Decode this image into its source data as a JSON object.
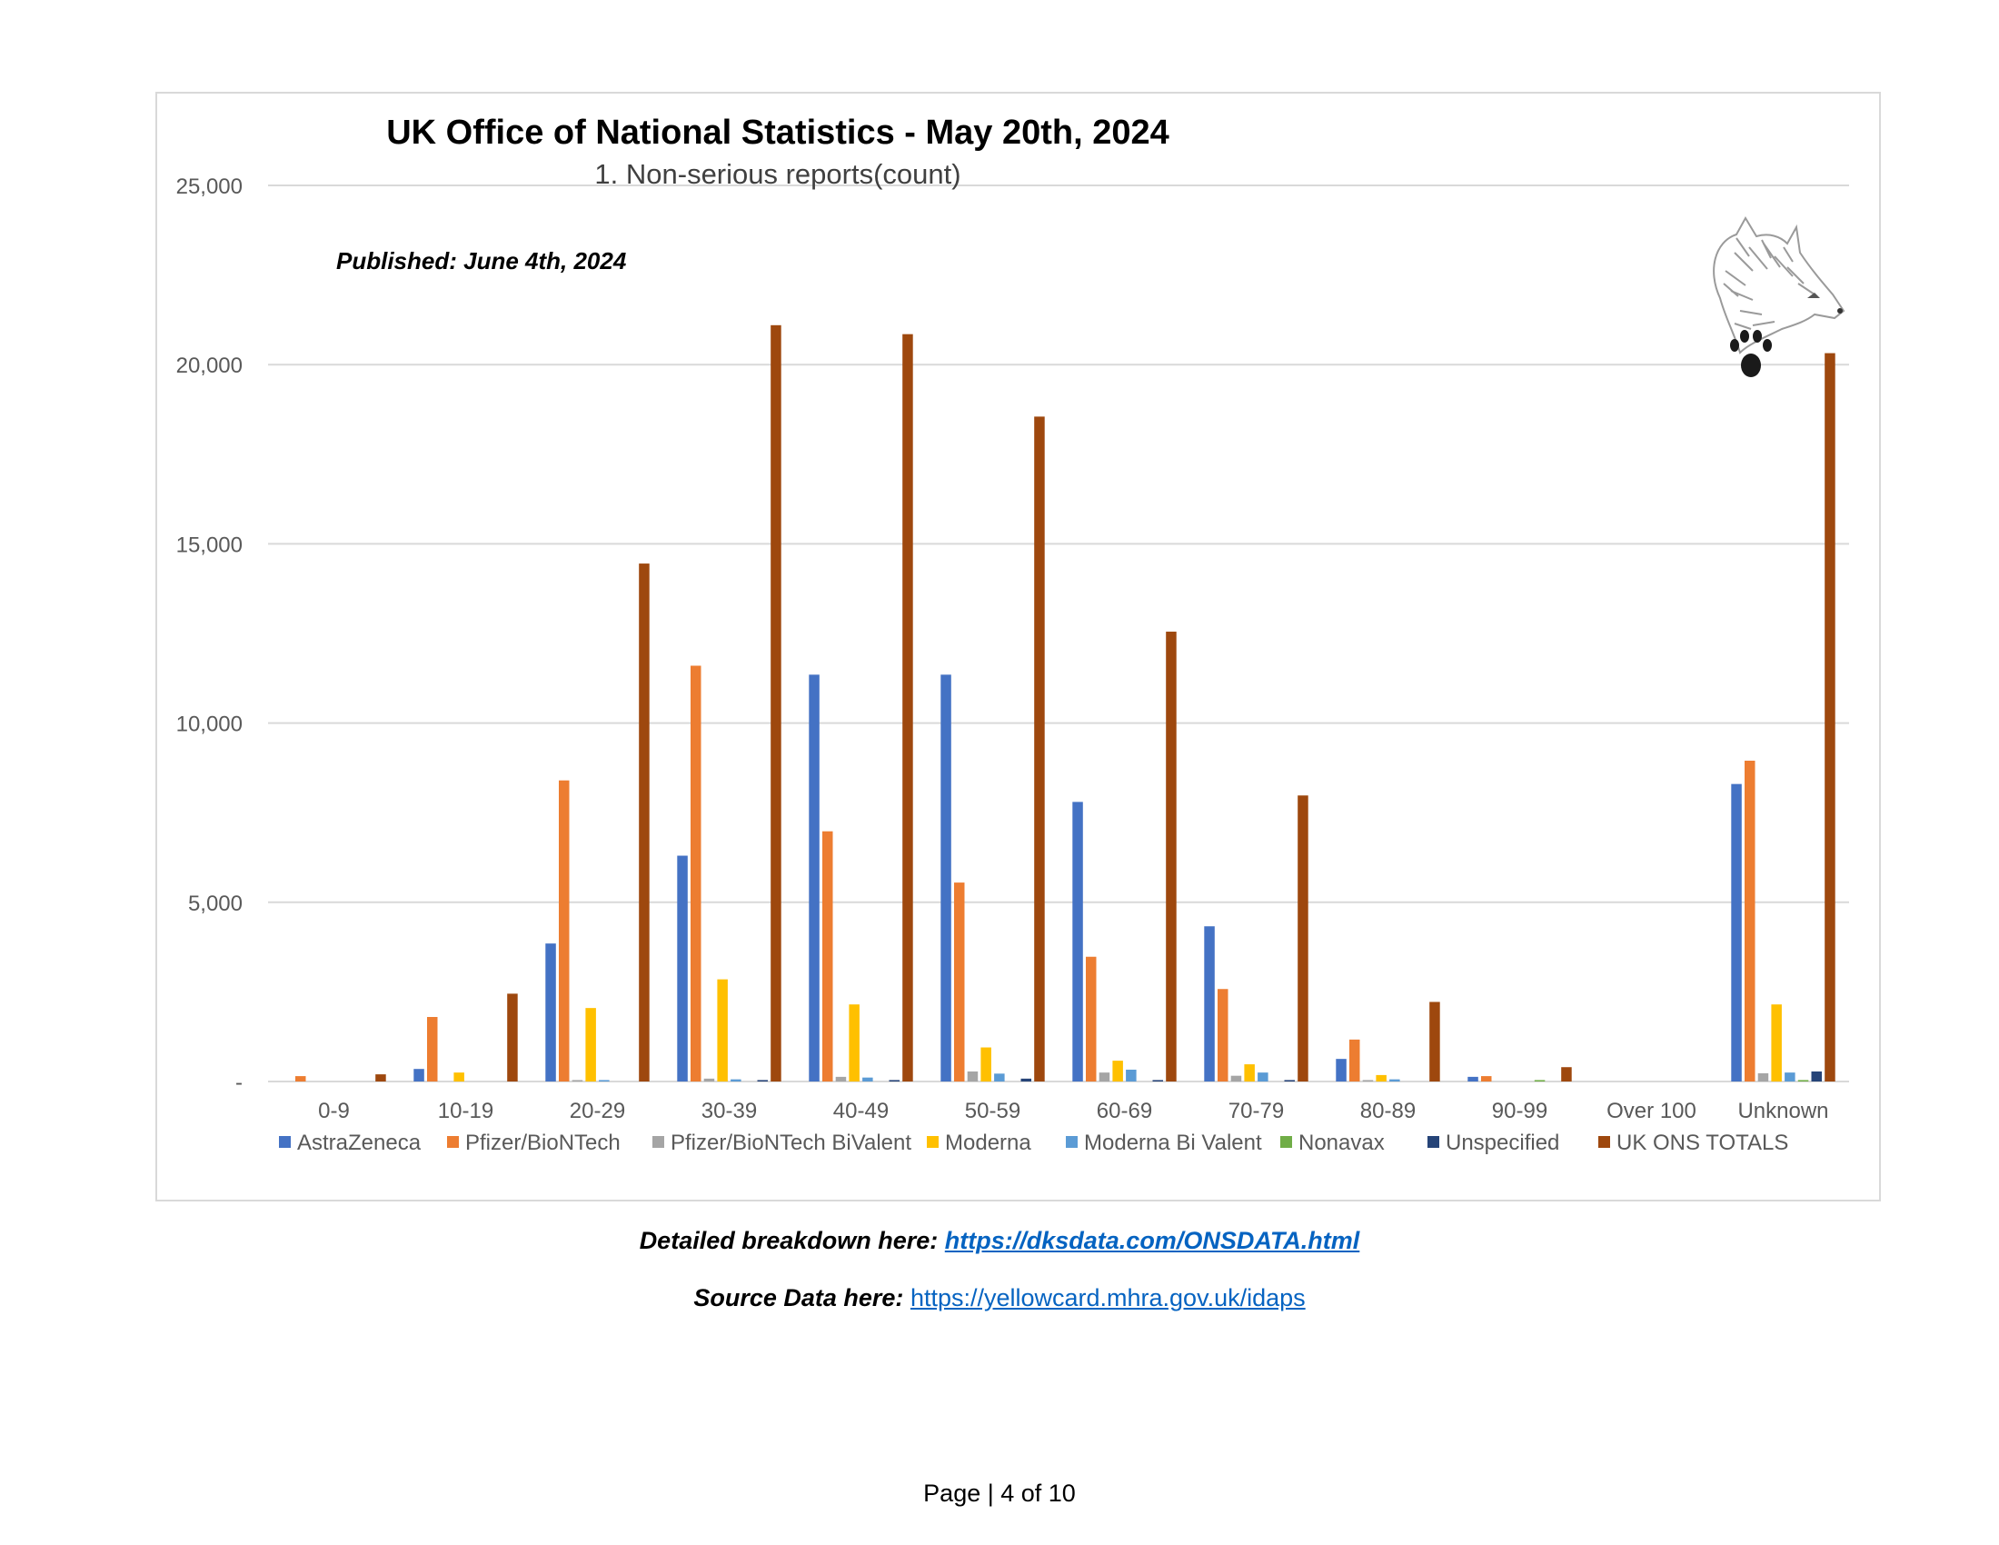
{
  "page": {
    "footer": {
      "breakdown_label": "Detailed breakdown here: ",
      "breakdown_link": "https://dksdata.com/ONSDATA.html",
      "source_label": "Source Data here: ",
      "source_link": "https://yellowcard.mhra.gov.uk/idaps"
    },
    "page_number": "Page | 4 of 10"
  },
  "chart_data": {
    "type": "bar",
    "title": "UK Office of National Statistics - May 20th, 2024",
    "subtitle": "1. Non-serious reports(count)",
    "annotation": "Published: June 4th, 2024",
    "logo": "wolf-head-with-paw-print",
    "xlabel": "",
    "ylabel": "",
    "ylim": [
      0,
      25000
    ],
    "yticks": [
      0,
      5000,
      10000,
      15000,
      20000,
      25000
    ],
    "ytick_labels": [
      "-",
      "5,000",
      "10,000",
      "15,000",
      "20,000",
      "25,000"
    ],
    "grid": true,
    "legend_position": "bottom",
    "categories": [
      "0-9",
      "10-19",
      "20-29",
      "30-39",
      "40-49",
      "50-59",
      "60-69",
      "70-79",
      "80-89",
      "90-99",
      "Over 100",
      "Unknown"
    ],
    "series": [
      {
        "name": "AstraZeneca",
        "color": "#4472c4",
        "values": [
          0,
          350,
          3850,
          6300,
          11350,
          11350,
          7800,
          4330,
          630,
          130,
          0,
          8300
        ]
      },
      {
        "name": "Pfizer/BioNTech",
        "color": "#ed7d31",
        "values": [
          150,
          1800,
          8400,
          11600,
          6980,
          5550,
          3480,
          2580,
          1170,
          150,
          0,
          8950
        ]
      },
      {
        "name": "Pfizer/BioNTech BiValent",
        "color": "#a5a5a5",
        "values": [
          0,
          0,
          40,
          80,
          130,
          280,
          250,
          160,
          40,
          0,
          0,
          230
        ]
      },
      {
        "name": "Moderna",
        "color": "#ffc000",
        "values": [
          0,
          250,
          2050,
          2850,
          2150,
          950,
          580,
          480,
          180,
          0,
          0,
          2150
        ]
      },
      {
        "name": "Moderna Bi Valent",
        "color": "#5b9bd5",
        "values": [
          0,
          0,
          40,
          60,
          110,
          220,
          330,
          250,
          60,
          0,
          0,
          250
        ]
      },
      {
        "name": "Nonavax",
        "color": "#70ad47",
        "values": [
          0,
          0,
          0,
          0,
          0,
          0,
          0,
          0,
          0,
          40,
          0,
          40
        ]
      },
      {
        "name": "Unspecified",
        "color": "#264478",
        "values": [
          0,
          0,
          0,
          40,
          40,
          80,
          40,
          40,
          0,
          0,
          0,
          280
        ]
      },
      {
        "name": "UK ONS TOTALS",
        "color": "#9e480e",
        "values": [
          200,
          2450,
          14450,
          21100,
          20850,
          18550,
          12550,
          7980,
          2220,
          400,
          0,
          20320
        ]
      }
    ]
  }
}
